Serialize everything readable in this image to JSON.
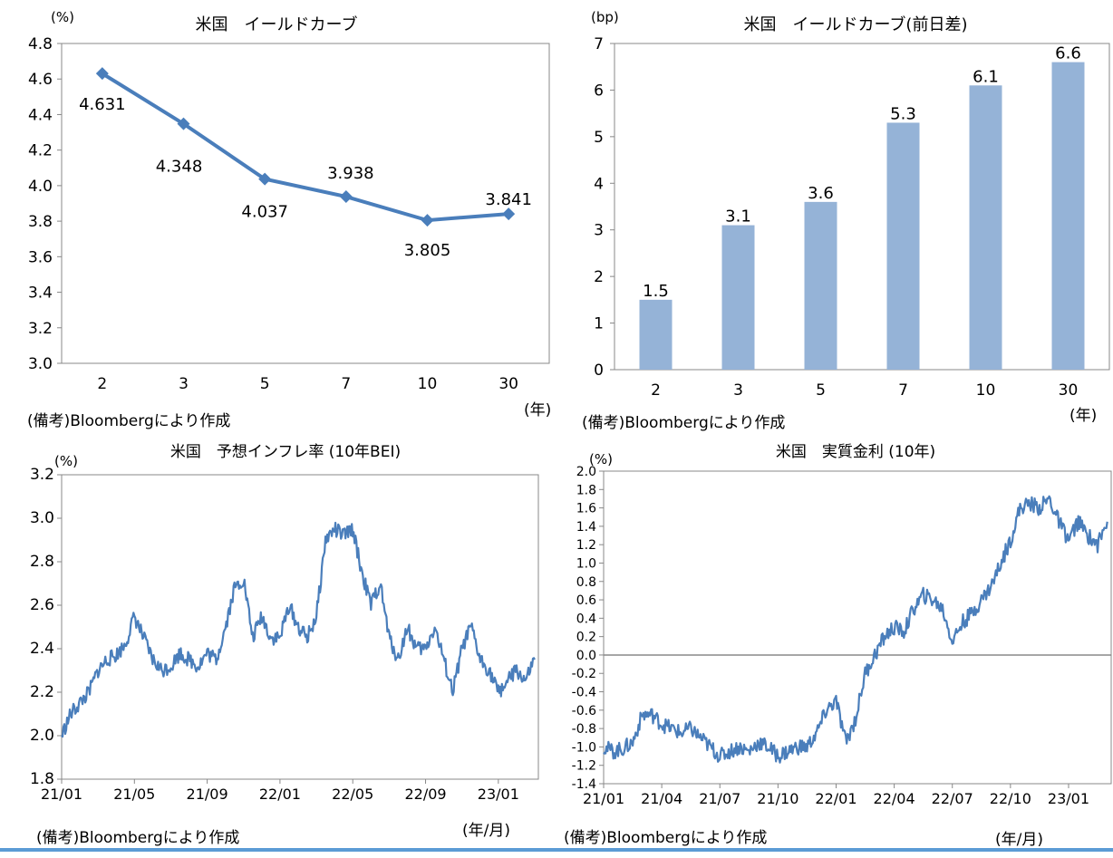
{
  "chart_data": [
    {
      "type": "line",
      "title": "米国　イールドカーブ",
      "unit_label": "(%)",
      "xlabel": "(年)",
      "ylabel": "",
      "categories": [
        "2",
        "3",
        "5",
        "7",
        "10",
        "30"
      ],
      "values": [
        4.631,
        4.348,
        4.037,
        3.938,
        3.805,
        3.841
      ],
      "data_labels": [
        "4.631",
        "4.348",
        "4.037",
        "3.938",
        "3.805",
        "3.841"
      ],
      "ylim": [
        3.0,
        4.8
      ],
      "yticks": [
        "3.0",
        "3.2",
        "3.4",
        "3.6",
        "3.8",
        "4.0",
        "4.2",
        "4.4",
        "4.6",
        "4.8"
      ],
      "grid": false,
      "series_color": "#4a7ebb",
      "note": "(備考)Bloombergにより作成"
    },
    {
      "type": "bar",
      "title": "米国　イールドカーブ(前日差)",
      "unit_label": "(bp)",
      "xlabel": "(年)",
      "ylabel": "",
      "categories": [
        "2",
        "3",
        "5",
        "7",
        "10",
        "30"
      ],
      "values": [
        1.5,
        3.1,
        3.6,
        5.3,
        6.1,
        6.6
      ],
      "data_labels": [
        "1.5",
        "3.1",
        "3.6",
        "5.3",
        "6.1",
        "6.6"
      ],
      "ylim": [
        0,
        7
      ],
      "yticks": [
        "0",
        "1",
        "2",
        "3",
        "4",
        "5",
        "6",
        "7"
      ],
      "grid": false,
      "series_color": "#95b3d7",
      "note": "(備考)Bloombergにより作成"
    },
    {
      "type": "line",
      "title": "米国　予想インフレ率 (10年BEI)",
      "unit_label": "(%)",
      "xlabel": "(年/月)",
      "ylabel": "",
      "x_tick_labels": [
        "21/01",
        "21/05",
        "21/09",
        "22/01",
        "22/05",
        "22/09",
        "23/01"
      ],
      "x_tick_month_index": [
        0,
        4,
        8,
        12,
        16,
        20,
        24
      ],
      "x_range_months": [
        0,
        26.2
      ],
      "ylim": [
        1.8,
        3.2
      ],
      "yticks": [
        "1.8",
        "2.0",
        "2.2",
        "2.4",
        "2.6",
        "2.8",
        "3.0",
        "3.2"
      ],
      "grid": false,
      "series_color": "#4a7ebb",
      "series": [
        {
          "name": "10年BEI",
          "x_month": [
            0,
            0.5,
            1,
            1.5,
            2,
            2.5,
            3,
            3.5,
            4,
            4.5,
            5,
            5.5,
            6,
            6.5,
            7,
            7.5,
            8,
            8.5,
            9,
            9.5,
            10,
            10.5,
            11,
            11.5,
            12,
            12.5,
            13,
            13.5,
            14,
            14.5,
            15,
            15.5,
            16,
            16.5,
            17,
            17.5,
            18,
            18.5,
            19,
            19.5,
            20,
            20.5,
            21,
            21.5,
            22,
            22.5,
            23,
            23.5,
            24,
            24.5,
            25,
            25.5,
            26
          ],
          "values": [
            2.0,
            2.1,
            2.15,
            2.2,
            2.3,
            2.35,
            2.37,
            2.42,
            2.55,
            2.45,
            2.35,
            2.3,
            2.32,
            2.38,
            2.35,
            2.32,
            2.38,
            2.35,
            2.5,
            2.68,
            2.72,
            2.45,
            2.55,
            2.45,
            2.45,
            2.6,
            2.5,
            2.45,
            2.55,
            2.9,
            2.95,
            2.92,
            2.95,
            2.75,
            2.6,
            2.7,
            2.45,
            2.35,
            2.5,
            2.4,
            2.4,
            2.5,
            2.35,
            2.2,
            2.4,
            2.5,
            2.35,
            2.3,
            2.2,
            2.25,
            2.3,
            2.25,
            2.35
          ]
        }
      ],
      "note": "(備考)Bloombergにより作成"
    },
    {
      "type": "line",
      "title": "米国　実質金利 (10年)",
      "unit_label": "(%)",
      "xlabel": "(年/月)",
      "ylabel": "",
      "x_tick_labels": [
        "21/01",
        "21/04",
        "21/07",
        "21/10",
        "22/01",
        "22/04",
        "22/07",
        "22/10",
        "23/01"
      ],
      "x_tick_month_index": [
        0,
        3,
        6,
        9,
        12,
        15,
        18,
        21,
        24
      ],
      "x_range_months": [
        0,
        26.2
      ],
      "ylim": [
        -1.4,
        2.0
      ],
      "yticks": [
        "-1.4",
        "-1.2",
        "-1.0",
        "-0.8",
        "-0.6",
        "-0.4",
        "-0.2",
        "0.0",
        "0.2",
        "0.4",
        "0.6",
        "0.8",
        "1.0",
        "1.2",
        "1.4",
        "1.6",
        "1.8",
        "2.0"
      ],
      "zero_line": true,
      "grid": false,
      "series_color": "#4a7ebb",
      "series": [
        {
          "name": "実質金利",
          "x_month": [
            0,
            0.5,
            1,
            1.5,
            2,
            2.5,
            3,
            3.5,
            4,
            4.5,
            5,
            5.5,
            6,
            6.5,
            7,
            7.5,
            8,
            8.5,
            9,
            9.5,
            10,
            10.5,
            11,
            11.5,
            12,
            12.5,
            13,
            13.5,
            14,
            14.5,
            15,
            15.5,
            16,
            16.5,
            17,
            17.5,
            18,
            18.5,
            19,
            19.5,
            20,
            20.5,
            21,
            21.5,
            22,
            22.5,
            23,
            23.5,
            24,
            24.5,
            25,
            25.5,
            26
          ],
          "values": [
            -1.0,
            -1.05,
            -1.02,
            -0.95,
            -0.65,
            -0.65,
            -0.75,
            -0.8,
            -0.85,
            -0.8,
            -0.9,
            -1.0,
            -1.1,
            -1.05,
            -1.0,
            -1.05,
            -0.95,
            -1.0,
            -1.1,
            -1.05,
            -1.0,
            -1.0,
            -0.85,
            -0.6,
            -0.5,
            -0.95,
            -0.7,
            -0.2,
            0.0,
            0.2,
            0.3,
            0.25,
            0.5,
            0.65,
            0.6,
            0.5,
            0.15,
            0.35,
            0.45,
            0.6,
            0.75,
            1.0,
            1.25,
            1.6,
            1.65,
            1.6,
            1.7,
            1.45,
            1.25,
            1.45,
            1.3,
            1.2,
            1.45
          ]
        }
      ],
      "note": "(備考)Bloombergにより作成"
    }
  ]
}
